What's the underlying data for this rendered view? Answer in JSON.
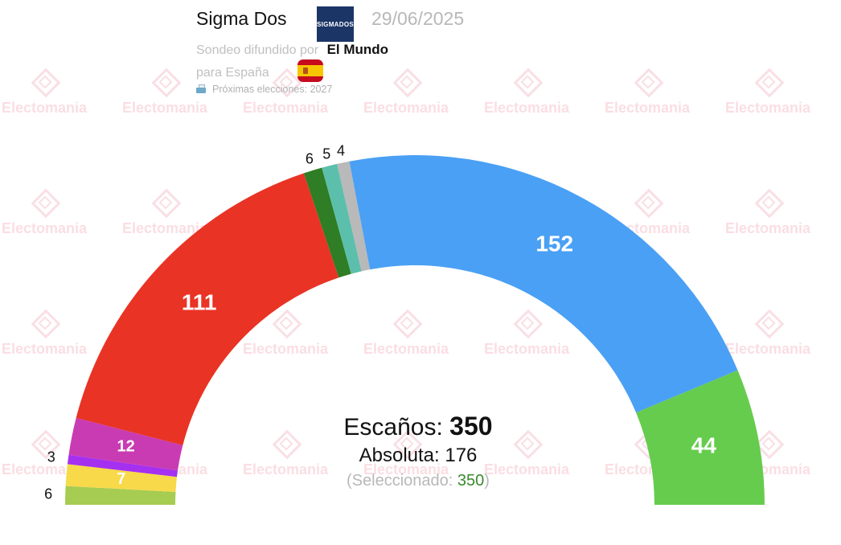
{
  "header": {
    "pollster": "Sigma Dos",
    "pollster_logo_text": "SIGMADOS",
    "date": "29/06/2025",
    "media_label": "Sondeo difundido por",
    "media_name": "El Mundo",
    "region": "para España",
    "next_election": "Próximas elecciones: 2027"
  },
  "watermark": "Electomania",
  "center": {
    "seats_label": "Escaños:",
    "seats_total": "350",
    "majority_label": "Absoluta: 176",
    "selected_label": "(Seleccionado:",
    "selected_value": "350",
    "selected_close": ")"
  },
  "chart_data": {
    "type": "pie",
    "subtype": "parliament-semicircle",
    "total": 350,
    "majority": 176,
    "series": [
      {
        "value": 6,
        "color": "#a6cc52"
      },
      {
        "value": 7,
        "color": "#f7d94a"
      },
      {
        "value": 3,
        "color": "#a530f0"
      },
      {
        "value": 12,
        "color": "#c93bb2"
      },
      {
        "value": 111,
        "color": "#e93324"
      },
      {
        "value": 6,
        "color": "#2f7d24"
      },
      {
        "value": 5,
        "color": "#5cbfab"
      },
      {
        "value": 4,
        "color": "#b9b9b9"
      },
      {
        "value": 152,
        "color": "#4aa0f4"
      },
      {
        "value": 44,
        "color": "#66cc4e"
      }
    ]
  }
}
